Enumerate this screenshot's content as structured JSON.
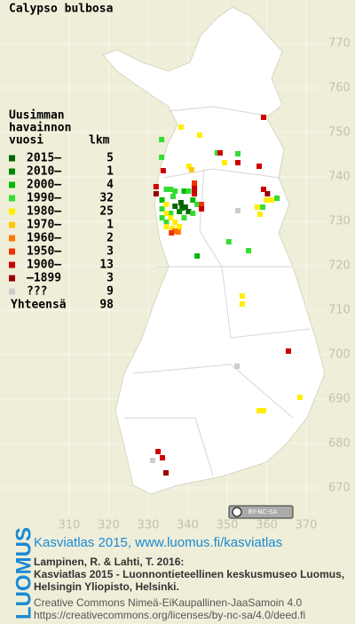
{
  "chart_data": {
    "type": "grid-map",
    "title": "Calypso bulbosa",
    "xlim": [
      300,
      375
    ],
    "ylim": [
      665,
      775
    ],
    "xticks": [
      310,
      320,
      330,
      340,
      350,
      360,
      370
    ],
    "yticks": [
      670,
      680,
      690,
      700,
      710,
      720,
      730,
      740,
      750,
      760,
      770
    ],
    "grid": true,
    "legend": {
      "heading": [
        "Uusimman",
        "havainnon",
        "vuosi"
      ],
      "count_heading": "lkm",
      "items": [
        {
          "label": "2015–",
          "count": 5,
          "color": "#006600",
          "points": [
            [
              336.8,
              733.4
            ],
            [
              338.3,
              734.2
            ],
            [
              339.4,
              733.2
            ],
            [
              340.2,
              732.2
            ],
            [
              338.6,
              733.0
            ]
          ]
        },
        {
          "label": "2010–",
          "count": 1,
          "color": "#008800",
          "points": [
            [
              337.9,
              732.2
            ]
          ]
        },
        {
          "label": "2000–",
          "count": 4,
          "color": "#00bb00",
          "points": [
            [
              342.4,
              722.2
            ],
            [
              339.1,
              736.8
            ],
            [
              333.5,
              734.8
            ],
            [
              341.3,
              734.8
            ]
          ]
        },
        {
          "label": "1990–",
          "count": 32,
          "color": "#33dd33",
          "points": [
            [
              333.4,
              748.4
            ],
            [
              333.4,
              744.4
            ],
            [
              352.7,
              745.2
            ],
            [
              359.0,
              733.2
            ],
            [
              362.6,
              735.2
            ],
            [
              350.4,
              725.4
            ],
            [
              355.4,
              723.4
            ],
            [
              334.6,
              737.2
            ],
            [
              335.7,
              737.2
            ],
            [
              336.8,
              736.8
            ],
            [
              340.2,
              736.8
            ],
            [
              334.6,
              729.8
            ],
            [
              333.5,
              730.8
            ],
            [
              342.4,
              733.8
            ],
            [
              336.3,
              735.6
            ],
            [
              339.1,
              730.8
            ],
            [
              335.7,
              731.8
            ],
            [
              333.5,
              732.8
            ],
            [
              341.3,
              731.8
            ],
            [
              347.5,
              745.4
            ]
          ]
        },
        {
          "label": "1980–",
          "count": 25,
          "color": "#ffee00",
          "points": [
            [
              338.3,
              751.2
            ],
            [
              343.0,
              749.4
            ],
            [
              349.3,
              743.2
            ],
            [
              340.3,
              742.4
            ],
            [
              359.9,
              734.8
            ],
            [
              357.6,
              733.2
            ],
            [
              361.2,
              734.8
            ],
            [
              358.3,
              731.6
            ],
            [
              353.8,
              713.2
            ],
            [
              353.8,
              711.4
            ],
            [
              368.4,
              690.4
            ],
            [
              358.1,
              687.4
            ],
            [
              359.2,
              687.4
            ],
            [
              334.6,
              733.8
            ],
            [
              334.6,
              731.8
            ],
            [
              335.7,
              730.8
            ],
            [
              336.8,
              729.8
            ],
            [
              337.9,
              728.8
            ],
            [
              336.1,
              728.4
            ],
            [
              334.6,
              728.8
            ]
          ]
        },
        {
          "label": "1970–",
          "count": 1,
          "color": "#ffc800",
          "points": [
            [
              341.0,
              741.6
            ]
          ]
        },
        {
          "label": "1960–",
          "count": 2,
          "color": "#ff7700",
          "points": [
            [
              336.8,
              727.8
            ],
            [
              337.6,
              727.6
            ]
          ]
        },
        {
          "label": "1950–",
          "count": 3,
          "color": "#ee3300",
          "points": [
            [
              335.9,
              727.4
            ],
            [
              341.7,
              738.6
            ],
            [
              343.5,
              733.8
            ]
          ]
        },
        {
          "label": "1900–",
          "count": 13,
          "color": "#cc0000",
          "points": [
            [
              359.2,
              753.4
            ],
            [
              348.2,
              745.4
            ],
            [
              352.7,
              743.2
            ],
            [
              333.8,
              741.4
            ],
            [
              358.1,
              742.4
            ],
            [
              359.2,
              737.2
            ],
            [
              365.5,
              700.8
            ],
            [
              332.5,
              678.2
            ],
            [
              333.6,
              676.8
            ],
            [
              332.0,
              737.8
            ],
            [
              341.7,
              737.4
            ],
            [
              341.7,
              736.2
            ],
            [
              343.5,
              732.8
            ]
          ]
        },
        {
          "label": "–1899",
          "count": 3,
          "color": "#990000",
          "points": [
            [
              334.5,
              673.4
            ],
            [
              332.0,
              736.2
            ],
            [
              360.2,
              736.2
            ]
          ]
        },
        {
          "label": "???",
          "count": 9,
          "color": "#cccccc",
          "points": [
            [
              352.7,
              732.4
            ],
            [
              352.5,
              697.4
            ],
            [
              331.1,
              676.2
            ]
          ]
        }
      ],
      "total_label": "Yhteensä",
      "total": 98
    }
  },
  "badge": "BY-NC-SA",
  "footer": {
    "logo": "LUOMUS",
    "link": "Kasviatlas 2015, www.luomus.fi/kasviatlas",
    "citation": [
      "Lampinen, R. & Lahti, T. 2016:",
      "Kasviatlas 2015 - Luonnontieteellinen keskusmuseo Luomus,",
      "Helsingin Yliopisto, Helsinki."
    ],
    "license": [
      "Creative Commons Nimeä-EiKaupallinen-JaaSamoin 4.0",
      "https://creativecommons.org/licenses/by-nc-sa/4.0/deed.fi"
    ]
  }
}
